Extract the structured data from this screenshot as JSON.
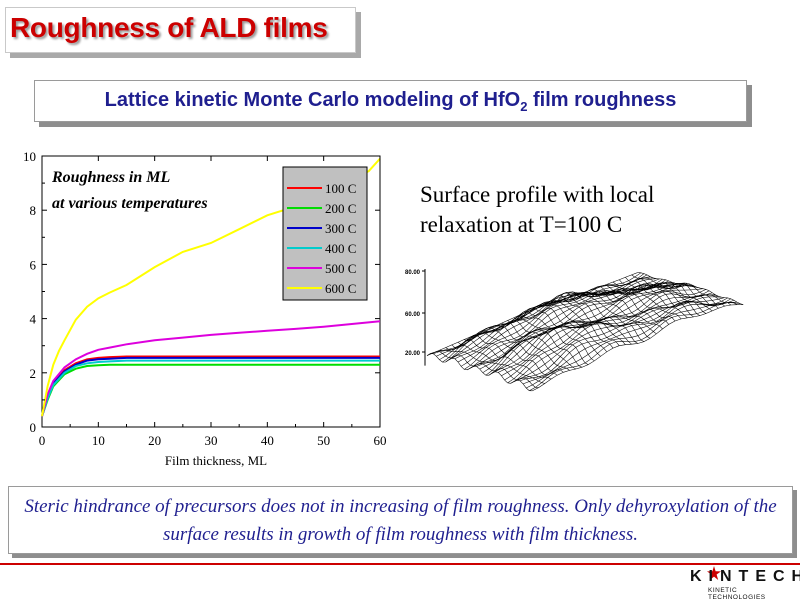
{
  "title": "Roughness of ALD films",
  "subtitle": {
    "prefix": "Lattice kinetic Monte Carlo modeling of HfO",
    "subscript": "2",
    "suffix": " film roughness"
  },
  "chart_data": {
    "type": "line",
    "annotation_line1": "Roughness in ML",
    "annotation_line2": "at various temperatures",
    "xlabel": "Film thickness, ML",
    "ylabel": "",
    "xlim": [
      0,
      60
    ],
    "ylim": [
      0,
      10
    ],
    "x_ticks": [
      "0",
      "10",
      "20",
      "30",
      "40",
      "50",
      "60"
    ],
    "y_ticks": [
      "0",
      "2",
      "4",
      "6",
      "8",
      "10"
    ],
    "legend_position": "top-right",
    "grid": false,
    "series": [
      {
        "name": "100 C",
        "color": "#ff0000",
        "x": [
          0,
          1,
          2,
          4,
          6,
          8,
          10,
          12,
          15,
          20,
          30,
          40,
          50,
          60
        ],
        "y": [
          0.4,
          1.1,
          1.6,
          2.1,
          2.35,
          2.5,
          2.55,
          2.58,
          2.6,
          2.6,
          2.6,
          2.6,
          2.6,
          2.6
        ]
      },
      {
        "name": "200 C",
        "color": "#00dd00",
        "x": [
          0,
          1,
          2,
          4,
          6,
          8,
          10,
          12,
          15,
          20,
          30,
          40,
          50,
          60
        ],
        "y": [
          0.4,
          1.0,
          1.5,
          1.95,
          2.15,
          2.25,
          2.28,
          2.3,
          2.3,
          2.3,
          2.3,
          2.3,
          2.3,
          2.3
        ]
      },
      {
        "name": "300 C",
        "color": "#0000cc",
        "x": [
          0,
          1,
          2,
          4,
          6,
          8,
          10,
          12,
          15,
          20,
          30,
          40,
          50,
          60
        ],
        "y": [
          0.4,
          1.1,
          1.6,
          2.05,
          2.3,
          2.45,
          2.5,
          2.52,
          2.55,
          2.55,
          2.55,
          2.55,
          2.55,
          2.55
        ]
      },
      {
        "name": "400 C",
        "color": "#00cccc",
        "x": [
          0,
          1,
          2,
          4,
          6,
          8,
          10,
          12,
          15,
          20,
          30,
          40,
          50,
          60
        ],
        "y": [
          0.4,
          1.05,
          1.55,
          2.0,
          2.25,
          2.35,
          2.4,
          2.42,
          2.45,
          2.45,
          2.45,
          2.45,
          2.45,
          2.45
        ]
      },
      {
        "name": "500 C",
        "color": "#dd00dd",
        "x": [
          0,
          1,
          2,
          4,
          6,
          8,
          10,
          12,
          15,
          20,
          25,
          30,
          35,
          40,
          45,
          50,
          55,
          60
        ],
        "y": [
          0.4,
          1.2,
          1.7,
          2.2,
          2.5,
          2.7,
          2.85,
          2.93,
          3.05,
          3.2,
          3.3,
          3.4,
          3.48,
          3.55,
          3.62,
          3.7,
          3.8,
          3.9
        ]
      },
      {
        "name": "600 C",
        "color": "#ffff00",
        "x": [
          0,
          1,
          2,
          3,
          4,
          6,
          8,
          10,
          12,
          15,
          20,
          25,
          30,
          35,
          40,
          45,
          50,
          55,
          58,
          60
        ],
        "y": [
          0.4,
          1.5,
          2.3,
          2.8,
          3.2,
          3.9,
          4.5,
          4.75,
          4.9,
          5.3,
          5.9,
          6.4,
          6.85,
          7.3,
          7.75,
          8.2,
          8.65,
          9.1,
          9.5,
          9.9
        ]
      }
    ]
  },
  "surface": {
    "caption": "Surface profile with local relaxation at T=100 C",
    "z_ticks": [
      "80.00",
      "60.00",
      "20.00"
    ]
  },
  "note": "Steric hindrance of precursors does not in increasing of film roughness. Only dehyroxylation of the surface results in growth of film roughness with film thickness.",
  "logo": {
    "brand": "KINTECH",
    "tagline": "KINETIC TECHNOLOGIES"
  },
  "colors": {
    "title_red": "#cc0000",
    "navy_text": "#1f1f8f",
    "legend_bg": "#c0c0c0"
  }
}
